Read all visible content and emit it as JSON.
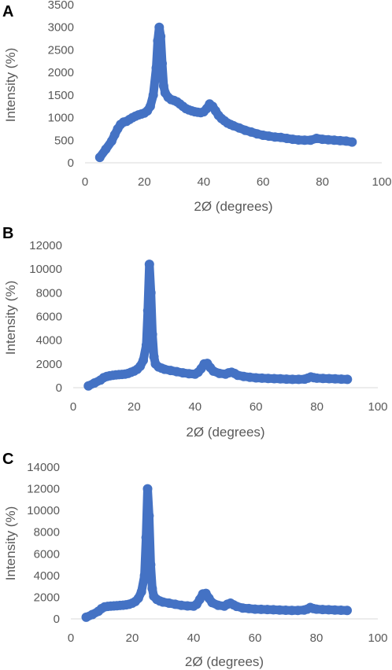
{
  "colors": {
    "series": "#4472c4",
    "axis_text": "#595959",
    "axis_line": "#d9d9d9"
  },
  "chart_data": [
    {
      "type": "scatter",
      "panel_label": "A",
      "xlabel": "2Ø (degrees)",
      "ylabel": "Intensity (%)",
      "xlim": [
        0,
        100
      ],
      "ylim": [
        0,
        3500
      ],
      "xticks": [
        "0",
        "20",
        "40",
        "60",
        "80",
        "100"
      ],
      "yticks": [
        "0",
        "500",
        "1000",
        "1500",
        "2000",
        "2500",
        "3000",
        "3500"
      ],
      "grid": false,
      "x": [
        5,
        7,
        9,
        10,
        11,
        12,
        13,
        14,
        15,
        16,
        17,
        18,
        19,
        20,
        21,
        22,
        23,
        24,
        24.5,
        25,
        25.5,
        26,
        26.5,
        27,
        28,
        29,
        30,
        31,
        32,
        33,
        34,
        35,
        36,
        37,
        38,
        39,
        40,
        41,
        42,
        43,
        44,
        45,
        46,
        47,
        48,
        49,
        50,
        52,
        54,
        56,
        58,
        60,
        62,
        64,
        66,
        68,
        70,
        72,
        74,
        76,
        78,
        80,
        82,
        84,
        86,
        88,
        90
      ],
      "y": [
        120,
        300,
        480,
        620,
        750,
        850,
        900,
        920,
        960,
        1000,
        1030,
        1060,
        1080,
        1100,
        1150,
        1250,
        1500,
        2100,
        2700,
        3000,
        2800,
        2200,
        1700,
        1550,
        1450,
        1400,
        1380,
        1350,
        1300,
        1250,
        1200,
        1170,
        1150,
        1130,
        1120,
        1110,
        1130,
        1200,
        1300,
        1250,
        1150,
        1050,
        980,
        930,
        880,
        850,
        820,
        770,
        720,
        680,
        640,
        610,
        590,
        570,
        560,
        540,
        520,
        505,
        500,
        500,
        540,
        520,
        510,
        500,
        490,
        480,
        460
      ]
    },
    {
      "type": "scatter",
      "panel_label": "B",
      "xlabel": "2Ø (degrees)",
      "ylabel": "Intensity (%)",
      "xlim": [
        0,
        100
      ],
      "ylim": [
        0,
        12000
      ],
      "xticks": [
        "0",
        "20",
        "40",
        "60",
        "80",
        "100"
      ],
      "yticks": [
        "0",
        "2000",
        "4000",
        "6000",
        "8000",
        "10000",
        "12000"
      ],
      "grid": false,
      "x": [
        5,
        7,
        9,
        10,
        11,
        12,
        13,
        14,
        15,
        16,
        17,
        18,
        19,
        20,
        21,
        22,
        23,
        24,
        24.5,
        25,
        25.5,
        26,
        26.5,
        27,
        28,
        29,
        30,
        32,
        34,
        36,
        38,
        40,
        41,
        42,
        43,
        44,
        45,
        46,
        48,
        50,
        51,
        52,
        53,
        54,
        56,
        58,
        60,
        62,
        64,
        66,
        68,
        70,
        72,
        74,
        76,
        77,
        78,
        79,
        80,
        82,
        84,
        86,
        88,
        90
      ],
      "y": [
        150,
        400,
        650,
        850,
        950,
        1000,
        1050,
        1080,
        1100,
        1120,
        1150,
        1200,
        1300,
        1400,
        1550,
        1800,
        2300,
        3600,
        6500,
        10400,
        8000,
        4500,
        2600,
        2000,
        1750,
        1650,
        1550,
        1450,
        1350,
        1250,
        1180,
        1150,
        1300,
        1600,
        2000,
        2050,
        1700,
        1400,
        1200,
        1150,
        1250,
        1300,
        1200,
        1050,
        950,
        880,
        830,
        800,
        780,
        760,
        740,
        720,
        700,
        700,
        720,
        800,
        900,
        850,
        800,
        780,
        760,
        740,
        720,
        700
      ]
    },
    {
      "type": "scatter",
      "panel_label": "C",
      "xlabel": "2Ø (degrees)",
      "ylabel": "Intensity (%)",
      "xlim": [
        0,
        100
      ],
      "ylim": [
        0,
        14000
      ],
      "xticks": [
        "0",
        "20",
        "40",
        "60",
        "80",
        "100"
      ],
      "yticks": [
        "0",
        "2000",
        "4000",
        "6000",
        "8000",
        "10000",
        "12000",
        "14000"
      ],
      "grid": false,
      "x": [
        5,
        7,
        9,
        10,
        11,
        12,
        13,
        14,
        15,
        16,
        17,
        18,
        19,
        20,
        21,
        22,
        23,
        24,
        24.5,
        25,
        25.5,
        26,
        26.5,
        27,
        28,
        29,
        30,
        32,
        34,
        36,
        38,
        40,
        41,
        42,
        43,
        44,
        45,
        46,
        48,
        50,
        51,
        52,
        53,
        54,
        56,
        58,
        60,
        62,
        64,
        66,
        68,
        70,
        72,
        74,
        76,
        77,
        78,
        79,
        80,
        82,
        84,
        86,
        88,
        90
      ],
      "y": [
        150,
        400,
        700,
        950,
        1100,
        1150,
        1180,
        1200,
        1220,
        1240,
        1260,
        1300,
        1350,
        1450,
        1600,
        1900,
        2500,
        4000,
        7500,
        12000,
        9500,
        5000,
        2800,
        2100,
        1800,
        1650,
        1550,
        1450,
        1350,
        1250,
        1200,
        1180,
        1350,
        1800,
        2300,
        2350,
        1900,
        1500,
        1250,
        1180,
        1350,
        1450,
        1300,
        1150,
        1000,
        950,
        900,
        880,
        860,
        840,
        820,
        800,
        780,
        780,
        820,
        900,
        1050,
        950,
        900,
        860,
        840,
        820,
        800,
        780
      ]
    }
  ]
}
